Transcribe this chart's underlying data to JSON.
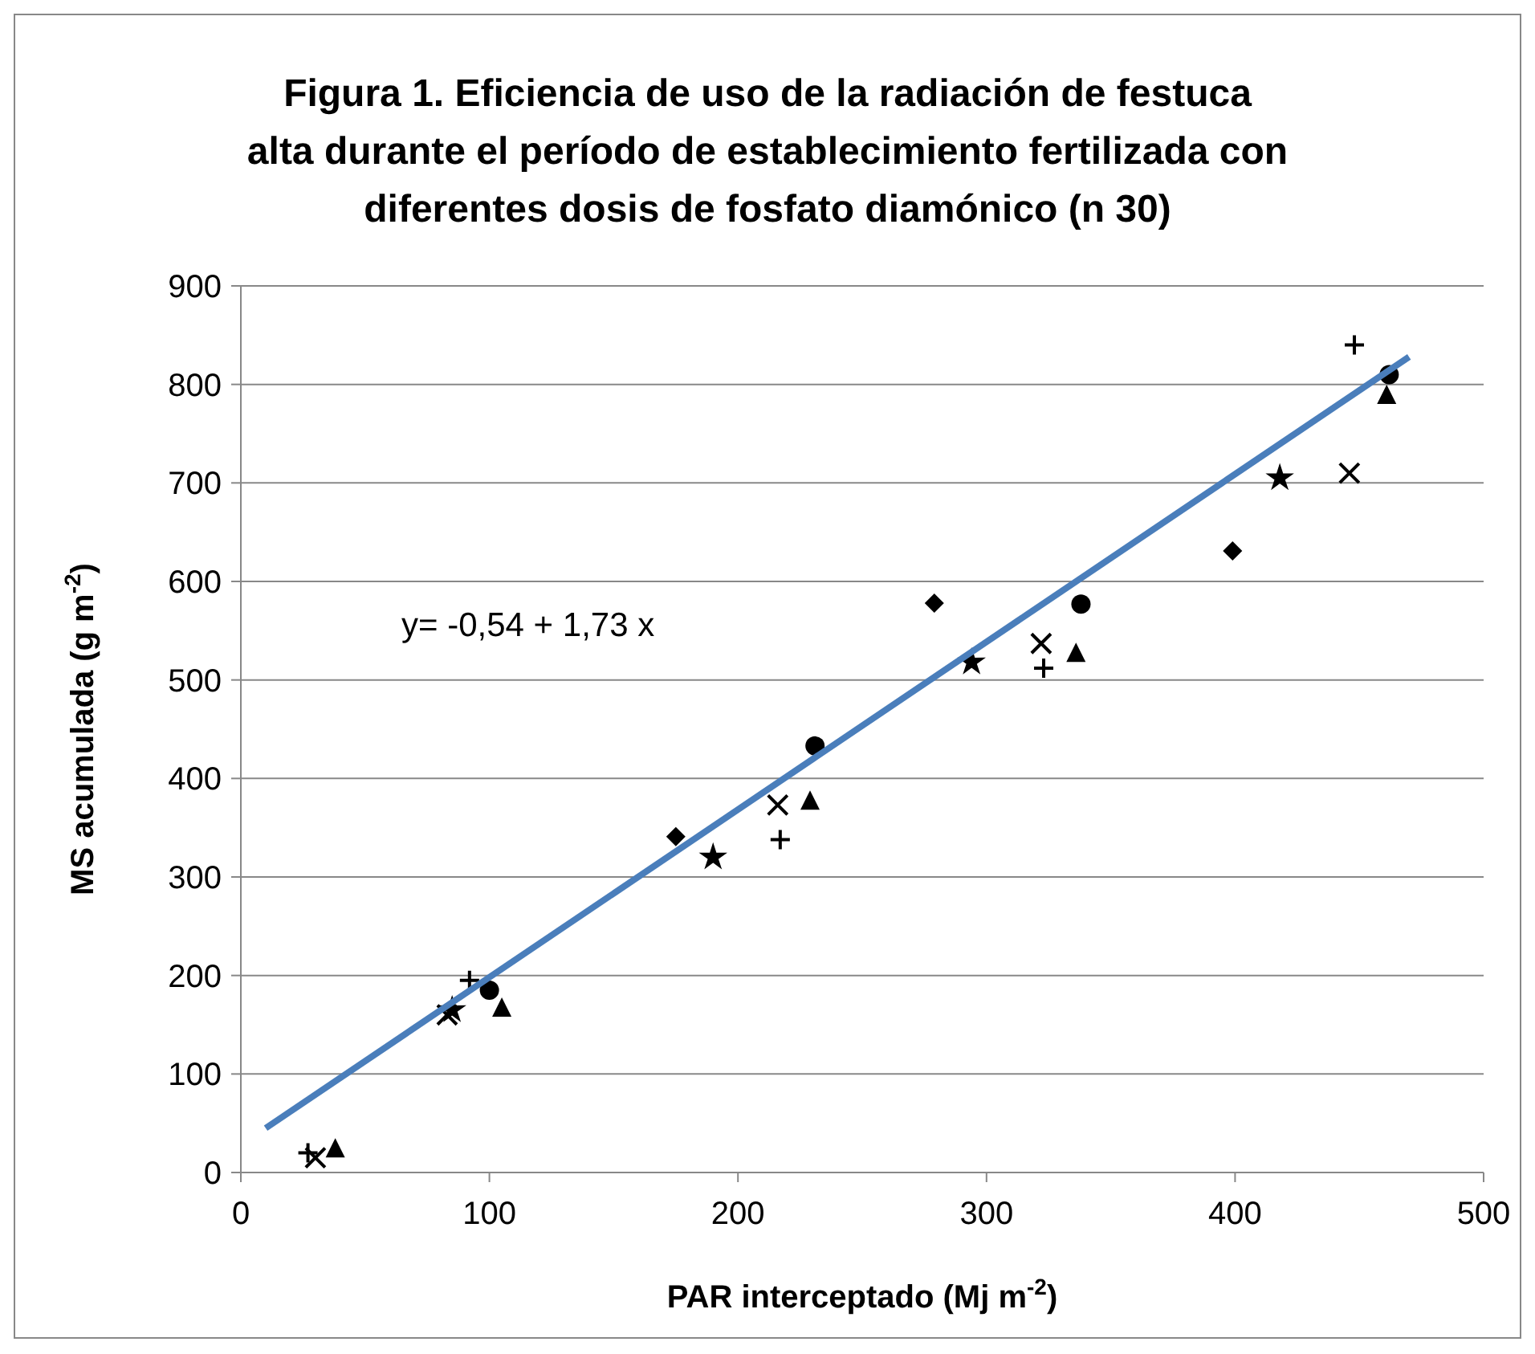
{
  "chart_data": {
    "type": "scatter",
    "title": "Figura 1. Eficiencia de uso de la radiación de festuca alta durante el período de establecimiento fertilizada con diferentes dosis de fosfato diamónico (n 30)",
    "xlabel": "PAR interceptado (Mj m$^{-2}$)",
    "ylabel": "MS acumulada (g m$^{-2}$)",
    "xlim": [
      0,
      500
    ],
    "ylim": [
      0,
      900
    ],
    "xticks": [
      0,
      100,
      200,
      300,
      400,
      500
    ],
    "yticks": [
      0,
      100,
      200,
      300,
      400,
      500,
      600,
      700,
      800,
      900
    ],
    "grid": "y",
    "annotations": [
      "y= -0,54 + 1,73 x"
    ],
    "series": [
      {
        "color": "#000000",
        "marker": "diamond",
        "x": [
          175,
          279,
          399
        ],
        "values": [
          341,
          578,
          631
        ]
      },
      {
        "color": "#000000",
        "marker": "circle",
        "x": [
          100,
          231,
          338,
          462
        ],
        "values": [
          185,
          433,
          577,
          810
        ]
      },
      {
        "color": "#000000",
        "marker": "triangle",
        "x": [
          38,
          105,
          229,
          336,
          461
        ],
        "values": [
          25,
          168,
          378,
          528,
          790
        ]
      },
      {
        "color": "#000000",
        "marker": "cross",
        "x": [
          30,
          83,
          216,
          322,
          446
        ],
        "values": [
          15,
          160,
          373,
          537,
          710
        ]
      },
      {
        "color": "#000000",
        "marker": "star",
        "x": [
          85,
          190,
          294,
          418
        ],
        "values": [
          165,
          320,
          518,
          705
        ]
      },
      {
        "color": "#000000",
        "marker": "plus",
        "x": [
          27,
          92,
          217,
          323,
          448
        ],
        "values": [
          20,
          195,
          338,
          512,
          840
        ]
      },
      {
        "type": "line",
        "color": "#4a7ebb",
        "marker": "none",
        "line_style": "solid",
        "x": [
          10,
          470
        ],
        "values": [
          45,
          828
        ]
      }
    ]
  }
}
